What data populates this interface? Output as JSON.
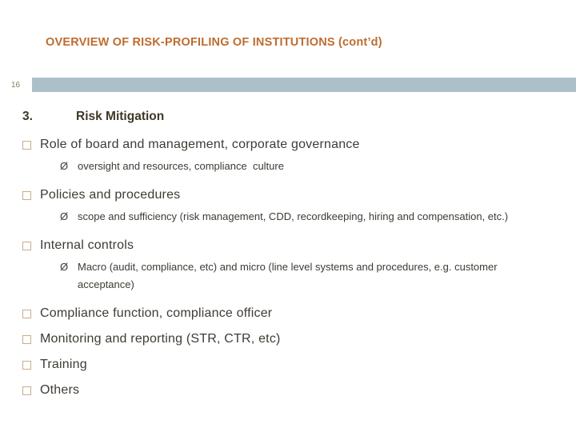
{
  "slide": {
    "title": "OVERVIEW OF RISK-PROFILING OF INSTITUTIONS (cont’d)",
    "page_number": "16",
    "heading_number": "3.",
    "heading": "Risk Mitigation",
    "sub_bullet_glyph": "Ø",
    "bullets": [
      {
        "label": "Role of board and management, corporate governance",
        "sub": [
          "oversight and resources, compliance  culture"
        ]
      },
      {
        "label": "Policies and procedures",
        "sub": [
          "scope and sufficiency (risk management, CDD, recordkeeping, hiring and compensation, etc.)"
        ]
      },
      {
        "label": "Internal controls",
        "sub": [
          "Macro (audit, compliance, etc) and micro (line level systems and procedures, e.g. customer acceptance)"
        ]
      },
      {
        "label": "Compliance function, compliance officer",
        "sub": []
      },
      {
        "label": "Monitoring and reporting (STR, CTR, etc)",
        "sub": []
      },
      {
        "label": "Training",
        "sub": []
      },
      {
        "label": "Others",
        "sub": []
      }
    ],
    "colors": {
      "title_orange": "#BE6C2E",
      "header_bar": "#ABC0C9",
      "bullet_outline": "#C8AD8C",
      "heading_color": "#3E3828",
      "body_text": "#3F3B35",
      "page_number_color": "#8B7D5E"
    }
  }
}
